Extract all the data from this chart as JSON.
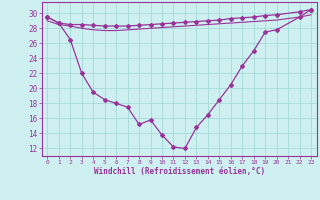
{
  "x": [
    0,
    1,
    2,
    3,
    4,
    5,
    6,
    7,
    8,
    9,
    10,
    11,
    12,
    13,
    14,
    15,
    16,
    17,
    18,
    19,
    20,
    22,
    23
  ],
  "line1": [
    29.5,
    28.7,
    28.5,
    28.5,
    28.4,
    28.3,
    28.3,
    28.3,
    28.4,
    28.5,
    28.6,
    28.7,
    28.8,
    28.9,
    29.0,
    29.1,
    29.3,
    29.4,
    29.5,
    29.7,
    29.8,
    30.2,
    30.5
  ],
  "line2": [
    29.0,
    28.5,
    28.3,
    28.0,
    27.8,
    27.7,
    27.7,
    27.8,
    27.9,
    28.0,
    28.1,
    28.2,
    28.3,
    28.4,
    28.5,
    28.6,
    28.7,
    28.8,
    28.9,
    29.0,
    29.1,
    29.5,
    29.8
  ],
  "line3": [
    29.5,
    28.7,
    26.5,
    22.0,
    19.5,
    18.5,
    18.0,
    17.5,
    15.2,
    15.8,
    13.8,
    12.2,
    12.0,
    14.8,
    16.5,
    18.5,
    20.5,
    23.0,
    25.0,
    27.5,
    27.8,
    29.5,
    30.5
  ],
  "bg_color": "#cff0f0",
  "line_color": "#993399",
  "grid_color": "#aadddd",
  "ylabel_values": [
    12,
    14,
    16,
    18,
    20,
    22,
    24,
    26,
    28,
    30
  ],
  "xlabel": "Windchill (Refroidissement éolien,°C)",
  "ylim": [
    11,
    31.5
  ],
  "xlim": [
    -0.5,
    23.5
  ]
}
